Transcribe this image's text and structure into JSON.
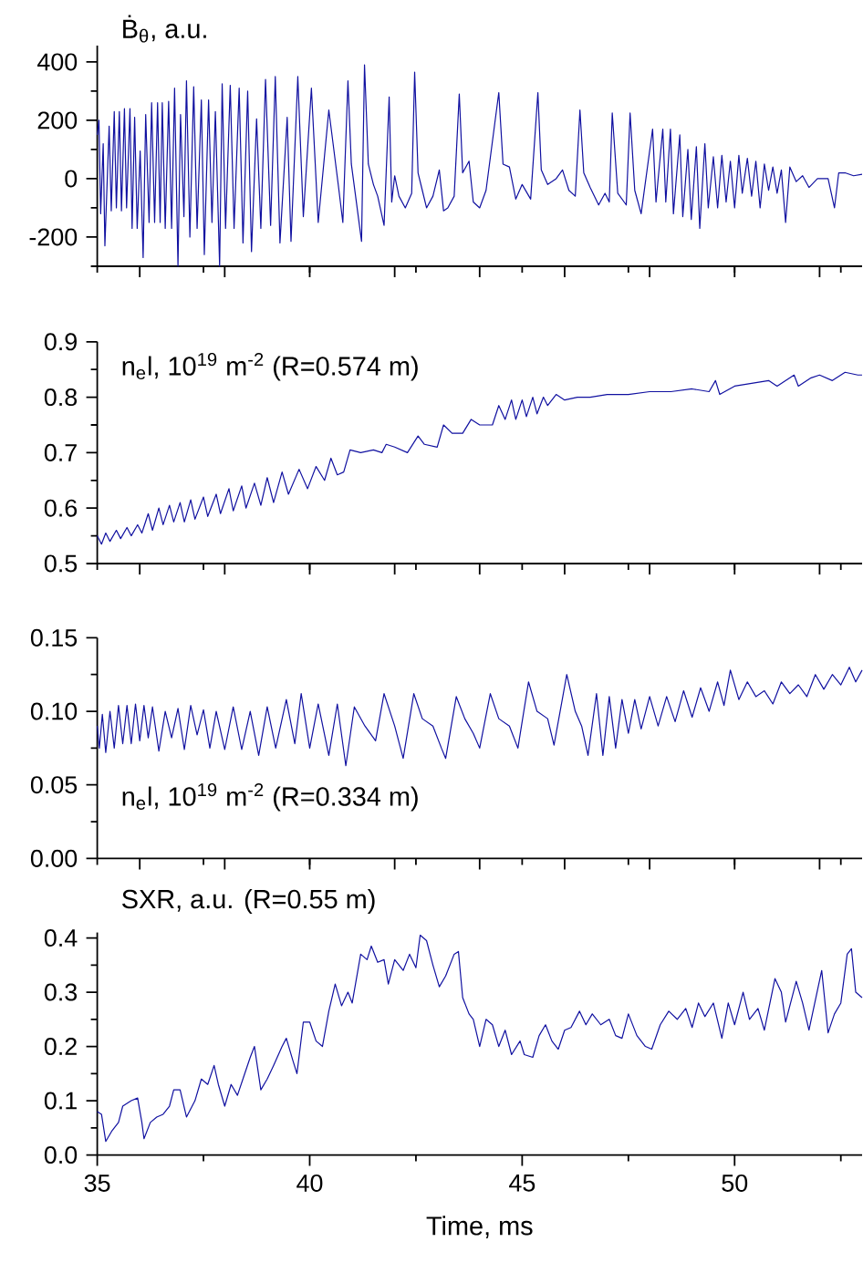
{
  "chart_data": [
    {
      "type": "line",
      "title": "Ḃ$_{θ}$, a.u.",
      "color": "#1010a0",
      "xlim": [
        35,
        53
      ],
      "ylim": [
        -300,
        456
      ],
      "tick_labels": "y",
      "xticks": [
        {
          "value": 35,
          "label": null
        },
        {
          "value": 37.5,
          "label": null
        },
        {
          "value": 40,
          "label": null
        },
        {
          "value": 42.5,
          "label": null
        },
        {
          "value": 45,
          "label": null
        },
        {
          "value": 47.5,
          "label": null
        },
        {
          "value": 50,
          "label": null
        },
        {
          "value": 52.5,
          "label": null
        }
      ],
      "yticks": [
        {
          "value": -300,
          "label": null
        },
        -200,
        {
          "value": -100,
          "label": null
        },
        0,
        {
          "value": 100,
          "label": null
        },
        200,
        {
          "value": 300,
          "label": null
        },
        400
      ],
      "x": [
        35.0,
        35.04,
        35.08,
        35.14,
        35.18,
        35.28,
        35.33,
        35.4,
        35.45,
        35.52,
        35.57,
        35.64,
        35.69,
        35.77,
        35.82,
        35.88,
        35.94,
        36.01,
        36.08,
        36.14,
        36.22,
        36.28,
        36.35,
        36.42,
        36.48,
        36.53,
        36.6,
        36.68,
        36.75,
        36.82,
        36.9,
        36.96,
        37.04,
        37.1,
        37.18,
        37.27,
        37.35,
        37.45,
        37.52,
        37.62,
        37.7,
        37.78,
        37.88,
        37.94,
        38.02,
        38.13,
        38.22,
        38.34,
        38.43,
        38.54,
        38.63,
        38.75,
        38.85,
        38.96,
        39.08,
        39.19,
        39.3,
        39.47,
        39.56,
        39.72,
        39.85,
        40.04,
        40.2,
        40.45,
        40.55,
        40.68,
        40.78,
        40.9,
        40.98,
        41.08,
        41.22,
        41.29,
        41.38,
        41.5,
        41.6,
        41.75,
        41.87,
        41.93,
        42.0,
        42.1,
        42.25,
        42.4,
        42.47,
        42.55,
        42.65,
        42.75,
        42.9,
        43.05,
        43.15,
        43.25,
        43.4,
        43.52,
        43.6,
        43.75,
        43.85,
        44.0,
        44.15,
        44.45,
        44.55,
        44.7,
        44.85,
        45.0,
        45.2,
        45.37,
        45.45,
        45.6,
        45.8,
        45.95,
        46.1,
        46.25,
        46.36,
        46.45,
        46.6,
        46.8,
        46.95,
        47.05,
        47.12,
        47.25,
        47.45,
        47.54,
        47.65,
        47.8,
        48.07,
        48.15,
        48.31,
        48.38,
        48.49,
        48.56,
        48.71,
        48.78,
        48.9,
        48.98,
        49.1,
        49.18,
        49.3,
        49.38,
        49.5,
        49.6,
        49.7,
        49.8,
        49.9,
        50.0,
        50.1,
        50.18,
        50.3,
        50.4,
        50.5,
        50.6,
        50.7,
        50.8,
        50.9,
        51.0,
        51.1,
        51.2,
        51.3,
        51.45,
        51.6,
        51.75,
        51.95,
        52.2,
        52.35,
        52.45,
        52.6,
        52.8,
        53.0
      ],
      "values": [
        150,
        200,
        -120,
        120,
        -230,
        180,
        -110,
        230,
        -100,
        230,
        -110,
        240,
        -100,
        240,
        -170,
        210,
        -170,
        95,
        -270,
        220,
        -150,
        260,
        -150,
        260,
        -150,
        260,
        -170,
        265,
        -170,
        310,
        -300,
        220,
        -130,
        335,
        -200,
        315,
        -170,
        270,
        -260,
        270,
        -150,
        230,
        -300,
        325,
        -170,
        320,
        -170,
        310,
        -220,
        300,
        -250,
        205,
        -170,
        340,
        -160,
        350,
        -220,
        210,
        -215,
        350,
        -130,
        310,
        -150,
        235,
        120,
        -30,
        -150,
        335,
        50,
        -60,
        -215,
        390,
        50,
        -20,
        -60,
        -160,
        280,
        -80,
        10,
        -60,
        -100,
        -50,
        365,
        20,
        -40,
        -100,
        -60,
        30,
        -110,
        -100,
        -60,
        290,
        20,
        60,
        -80,
        -100,
        -40,
        295,
        50,
        40,
        -70,
        -20,
        -70,
        295,
        30,
        -20,
        0,
        30,
        -40,
        -60,
        235,
        20,
        -30,
        -90,
        -50,
        -80,
        225,
        -50,
        -90,
        225,
        -40,
        -120,
        170,
        -80,
        170,
        -80,
        170,
        -120,
        150,
        -130,
        100,
        -140,
        110,
        -170,
        120,
        -100,
        75,
        -100,
        80,
        -80,
        60,
        -100,
        80,
        -50,
        70,
        -60,
        60,
        -100,
        50,
        -40,
        40,
        -50,
        30,
        -150,
        40,
        -10,
        10,
        -30,
        0,
        0,
        -100,
        20,
        20,
        10,
        15
      ]
    },
    {
      "type": "line",
      "title": "n$_{e}$l, 10$^{19}$ m$^{-2}$ (R=0.574 m)",
      "color": "#1010a0",
      "xlim": [
        35,
        53
      ],
      "ylim": [
        0.5,
        0.9
      ],
      "tick_labels": "y",
      "xticks": [
        {
          "value": 35,
          "label": null
        },
        {
          "value": 37.5,
          "label": null
        },
        {
          "value": 40,
          "label": null
        },
        {
          "value": 42.5,
          "label": null
        },
        {
          "value": 45,
          "label": null
        },
        {
          "value": 47.5,
          "label": null
        },
        {
          "value": 50,
          "label": null
        },
        {
          "value": 52.5,
          "label": null
        }
      ],
      "yticks": [
        0.5,
        {
          "value": 0.55,
          "label": null
        },
        0.6,
        {
          "value": 0.65,
          "label": null
        },
        0.7,
        {
          "value": 0.75,
          "label": null
        },
        0.8,
        {
          "value": 0.85,
          "label": null
        },
        0.9
      ],
      "x": [
        35.0,
        35.1,
        35.2,
        35.3,
        35.45,
        35.55,
        35.7,
        35.8,
        35.95,
        36.05,
        36.2,
        36.3,
        36.45,
        36.55,
        36.7,
        36.8,
        36.95,
        37.05,
        37.2,
        37.3,
        37.5,
        37.6,
        37.8,
        37.9,
        38.1,
        38.2,
        38.4,
        38.5,
        38.7,
        38.85,
        39.0,
        39.15,
        39.35,
        39.5,
        39.75,
        39.95,
        40.15,
        40.35,
        40.5,
        40.65,
        40.8,
        40.95,
        41.2,
        41.5,
        41.7,
        41.8,
        42.0,
        42.3,
        42.55,
        42.7,
        43.0,
        43.15,
        43.35,
        43.6,
        43.8,
        44.0,
        44.3,
        44.45,
        44.6,
        44.75,
        44.85,
        45.0,
        45.1,
        45.25,
        45.35,
        45.5,
        45.6,
        45.8,
        46.0,
        46.3,
        46.6,
        47.0,
        47.5,
        48.0,
        48.5,
        49.0,
        49.4,
        49.55,
        49.65,
        50.0,
        50.4,
        50.8,
        51.0,
        51.4,
        51.5,
        51.8,
        52.0,
        52.3,
        52.6,
        52.9,
        53.0
      ],
      "values": [
        0.55,
        0.535,
        0.555,
        0.54,
        0.56,
        0.545,
        0.565,
        0.55,
        0.57,
        0.555,
        0.59,
        0.56,
        0.6,
        0.57,
        0.605,
        0.575,
        0.61,
        0.575,
        0.615,
        0.58,
        0.62,
        0.585,
        0.625,
        0.59,
        0.635,
        0.595,
        0.64,
        0.6,
        0.645,
        0.605,
        0.655,
        0.61,
        0.665,
        0.625,
        0.67,
        0.635,
        0.675,
        0.65,
        0.69,
        0.66,
        0.665,
        0.705,
        0.7,
        0.705,
        0.7,
        0.715,
        0.71,
        0.7,
        0.73,
        0.715,
        0.71,
        0.75,
        0.735,
        0.735,
        0.76,
        0.75,
        0.75,
        0.785,
        0.76,
        0.795,
        0.76,
        0.795,
        0.765,
        0.8,
        0.77,
        0.8,
        0.785,
        0.805,
        0.795,
        0.8,
        0.8,
        0.805,
        0.805,
        0.81,
        0.81,
        0.815,
        0.81,
        0.83,
        0.805,
        0.82,
        0.825,
        0.83,
        0.82,
        0.84,
        0.82,
        0.835,
        0.84,
        0.83,
        0.845,
        0.84,
        0.84
      ]
    },
    {
      "type": "line",
      "title": "n$_{e}$l, 10$^{19}$ m$^{-2}$ (R=0.334 m)",
      "color": "#1010a0",
      "xlim": [
        35,
        53
      ],
      "ylim": [
        0,
        0.15
      ],
      "tick_labels": "y",
      "xticks": [
        {
          "value": 35,
          "label": null
        },
        {
          "value": 37.5,
          "label": null
        },
        {
          "value": 40,
          "label": null
        },
        {
          "value": 42.5,
          "label": null
        },
        {
          "value": 45,
          "label": null
        },
        {
          "value": 47.5,
          "label": null
        },
        {
          "value": 50,
          "label": null
        },
        {
          "value": 52.5,
          "label": null
        }
      ],
      "yticks": [
        {
          "value": 0,
          "label": "0.00"
        },
        {
          "value": 0.025,
          "label": null
        },
        {
          "value": 0.05,
          "label": "0.05"
        },
        {
          "value": 0.075,
          "label": null
        },
        {
          "value": 0.1,
          "label": "0.10"
        },
        {
          "value": 0.125,
          "label": null
        },
        {
          "value": 0.15,
          "label": "0.15"
        }
      ],
      "x": [
        35.0,
        35.05,
        35.12,
        35.2,
        35.3,
        35.4,
        35.5,
        35.6,
        35.7,
        35.8,
        35.9,
        36.0,
        36.1,
        36.2,
        36.3,
        36.45,
        36.6,
        36.75,
        36.9,
        37.05,
        37.2,
        37.35,
        37.5,
        37.65,
        37.8,
        38.0,
        38.2,
        38.4,
        38.6,
        38.8,
        39.0,
        39.2,
        39.45,
        39.65,
        39.8,
        40.0,
        40.2,
        40.45,
        40.65,
        40.85,
        41.05,
        41.3,
        41.55,
        41.75,
        42.0,
        42.2,
        42.45,
        42.65,
        42.9,
        43.1,
        43.2,
        43.45,
        43.65,
        43.85,
        44.0,
        44.25,
        44.45,
        44.7,
        44.9,
        45.15,
        45.35,
        45.6,
        45.75,
        46.05,
        46.25,
        46.4,
        46.55,
        46.75,
        46.9,
        47.05,
        47.2,
        47.35,
        47.5,
        47.65,
        47.8,
        48.0,
        48.2,
        48.4,
        48.6,
        48.8,
        49.0,
        49.2,
        49.4,
        49.6,
        49.75,
        49.9,
        50.1,
        50.3,
        50.5,
        50.7,
        50.9,
        51.1,
        51.3,
        51.5,
        51.7,
        51.9,
        52.1,
        52.3,
        52.5,
        52.7,
        52.85,
        53.0
      ],
      "values": [
        0.09,
        0.075,
        0.098,
        0.072,
        0.1,
        0.075,
        0.104,
        0.078,
        0.104,
        0.078,
        0.105,
        0.08,
        0.104,
        0.082,
        0.103,
        0.073,
        0.1,
        0.082,
        0.102,
        0.074,
        0.104,
        0.084,
        0.101,
        0.075,
        0.1,
        0.074,
        0.103,
        0.074,
        0.1,
        0.07,
        0.103,
        0.075,
        0.108,
        0.078,
        0.112,
        0.075,
        0.105,
        0.07,
        0.105,
        0.063,
        0.103,
        0.09,
        0.08,
        0.112,
        0.09,
        0.068,
        0.112,
        0.095,
        0.09,
        0.075,
        0.068,
        0.11,
        0.095,
        0.085,
        0.075,
        0.112,
        0.095,
        0.09,
        0.075,
        0.12,
        0.1,
        0.095,
        0.077,
        0.125,
        0.1,
        0.09,
        0.07,
        0.112,
        0.07,
        0.11,
        0.075,
        0.108,
        0.085,
        0.108,
        0.088,
        0.11,
        0.09,
        0.11,
        0.093,
        0.114,
        0.096,
        0.116,
        0.1,
        0.12,
        0.104,
        0.128,
        0.108,
        0.12,
        0.11,
        0.114,
        0.105,
        0.12,
        0.112,
        0.118,
        0.11,
        0.125,
        0.115,
        0.125,
        0.118,
        0.13,
        0.12,
        0.128
      ]
    },
    {
      "type": "line",
      "title": "SXR, a.u. (R=0.55 m)",
      "xlabel": "Time, ms",
      "color": "#1010a0",
      "xlim": [
        35,
        53
      ],
      "ylim": [
        0,
        0.41
      ],
      "xticks": [
        35,
        {
          "value": 37.5,
          "label": null
        },
        40,
        {
          "value": 42.5,
          "label": null
        },
        45,
        {
          "value": 47.5,
          "label": null
        },
        50,
        {
          "value": 52.5,
          "label": null
        }
      ],
      "yticks": [
        {
          "value": 0,
          "label": "0.0"
        },
        {
          "value": 0.05,
          "label": null
        },
        0.1,
        {
          "value": 0.15,
          "label": null
        },
        0.2,
        {
          "value": 0.25,
          "label": null
        },
        0.3,
        {
          "value": 0.35,
          "label": null
        },
        0.4
      ],
      "x": [
        35.0,
        35.1,
        35.2,
        35.35,
        35.5,
        35.6,
        35.8,
        35.95,
        36.05,
        36.1,
        36.25,
        36.4,
        36.55,
        36.7,
        36.8,
        36.95,
        37.1,
        37.3,
        37.45,
        37.6,
        37.75,
        37.85,
        38.0,
        38.15,
        38.3,
        38.45,
        38.6,
        38.7,
        38.85,
        39.0,
        39.15,
        39.35,
        39.45,
        39.6,
        39.7,
        39.85,
        40.0,
        40.15,
        40.3,
        40.45,
        40.6,
        40.75,
        40.9,
        41.0,
        41.2,
        41.35,
        41.45,
        41.6,
        41.75,
        41.85,
        42.0,
        42.2,
        42.35,
        42.5,
        42.6,
        42.75,
        42.9,
        43.05,
        43.2,
        43.4,
        43.5,
        43.6,
        43.75,
        43.85,
        44.0,
        44.15,
        44.3,
        44.45,
        44.6,
        44.75,
        44.95,
        45.05,
        45.25,
        45.4,
        45.55,
        45.7,
        45.85,
        46.0,
        46.15,
        46.35,
        46.5,
        46.65,
        46.85,
        47.05,
        47.2,
        47.35,
        47.5,
        47.7,
        47.9,
        48.05,
        48.25,
        48.45,
        48.65,
        48.85,
        49.0,
        49.15,
        49.3,
        49.5,
        49.7,
        49.85,
        50.0,
        50.2,
        50.35,
        50.55,
        50.7,
        50.95,
        51.1,
        51.2,
        51.45,
        51.6,
        51.75,
        52.05,
        52.2,
        52.35,
        52.5,
        52.65,
        52.75,
        52.85,
        53.0
      ],
      "values": [
        0.08,
        0.075,
        0.025,
        0.045,
        0.06,
        0.09,
        0.1,
        0.105,
        0.06,
        0.03,
        0.06,
        0.07,
        0.075,
        0.09,
        0.12,
        0.12,
        0.07,
        0.1,
        0.14,
        0.13,
        0.165,
        0.13,
        0.09,
        0.13,
        0.11,
        0.145,
        0.18,
        0.2,
        0.12,
        0.14,
        0.165,
        0.2,
        0.215,
        0.175,
        0.15,
        0.245,
        0.245,
        0.21,
        0.2,
        0.265,
        0.315,
        0.275,
        0.3,
        0.28,
        0.37,
        0.36,
        0.385,
        0.355,
        0.36,
        0.315,
        0.36,
        0.34,
        0.37,
        0.345,
        0.405,
        0.395,
        0.35,
        0.31,
        0.33,
        0.37,
        0.375,
        0.29,
        0.26,
        0.25,
        0.2,
        0.25,
        0.24,
        0.2,
        0.23,
        0.185,
        0.21,
        0.185,
        0.18,
        0.22,
        0.24,
        0.21,
        0.195,
        0.23,
        0.235,
        0.265,
        0.24,
        0.26,
        0.24,
        0.25,
        0.22,
        0.215,
        0.26,
        0.22,
        0.2,
        0.195,
        0.24,
        0.265,
        0.25,
        0.27,
        0.235,
        0.28,
        0.255,
        0.28,
        0.215,
        0.28,
        0.24,
        0.3,
        0.25,
        0.27,
        0.23,
        0.325,
        0.3,
        0.245,
        0.32,
        0.28,
        0.23,
        0.34,
        0.225,
        0.26,
        0.28,
        0.37,
        0.38,
        0.3,
        0.29
      ]
    }
  ]
}
